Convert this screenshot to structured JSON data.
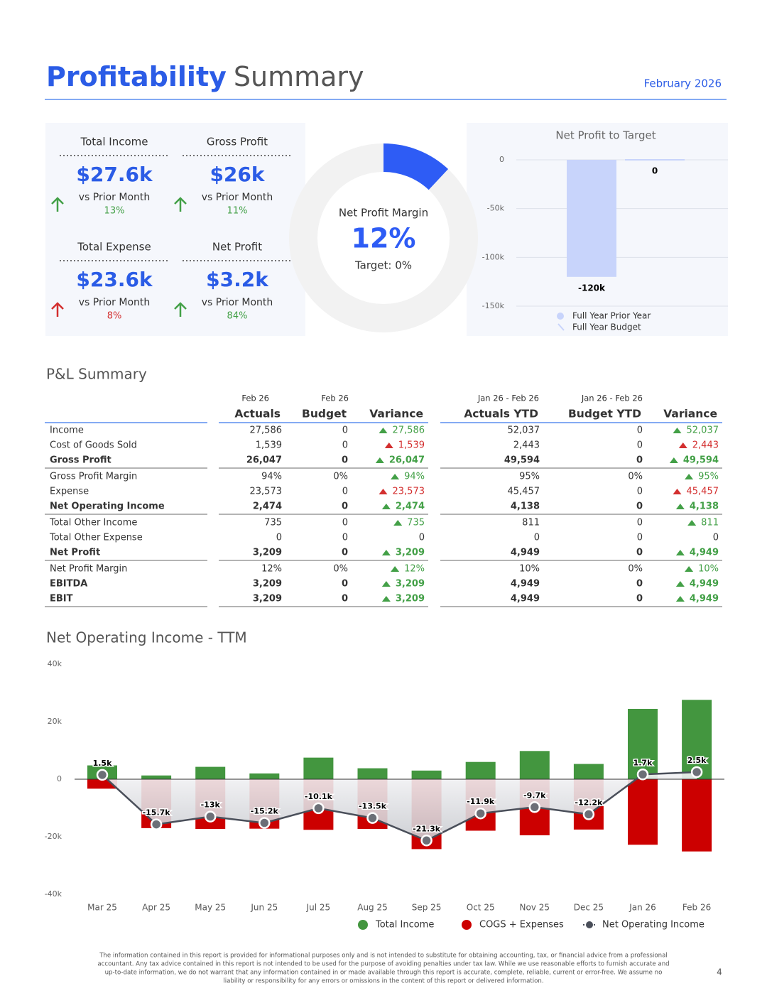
{
  "header": {
    "title_bold": "Profitability",
    "title_light": "Summary",
    "date": "February 2026"
  },
  "kpis": [
    {
      "label": "Total Income",
      "value": "$27.6k",
      "compare": "vs Prior Month",
      "change": "13%",
      "status": "good"
    },
    {
      "label": "Gross Profit",
      "value": "$26k",
      "compare": "vs Prior Month",
      "change": "11%",
      "status": "good"
    },
    {
      "label": "Total Expense",
      "value": "$23.6k",
      "compare": "vs Prior Month",
      "change": "8%",
      "status": "bad"
    },
    {
      "label": "Net Profit",
      "value": "$3.2k",
      "compare": "vs Prior Month",
      "change": "84%",
      "status": "good"
    }
  ],
  "chart_data": [
    {
      "type": "donut",
      "title": "Net Profit Margin",
      "value": 12,
      "value_label": "12%",
      "target": "Target: 0%",
      "color": "#2e5cf5"
    },
    {
      "type": "bar",
      "title": "Net Profit to Target",
      "categories": [
        null
      ],
      "ylim": [
        -150000,
        0
      ],
      "yticks": [
        0,
        {
          "value": -50000,
          "label": "-50k"
        },
        {
          "value": -100000,
          "label": "-100k"
        },
        {
          "value": -150000,
          "label": "-150k"
        }
      ],
      "grid": true,
      "series": [
        {
          "name": "Full Year Prior Year",
          "color": "#c8d4fb",
          "values": [
            -120000
          ],
          "value_labels": [
            "-120k"
          ]
        },
        {
          "name": "Full Year Budget",
          "color": "#c8d4fb",
          "values": [
            0
          ]
        }
      ]
    },
    {
      "type": "combo",
      "title": "Net Operating Income - TTM",
      "categories": [
        "Mar 25",
        "Apr 25",
        "May 25",
        "Jun 25",
        "Jul 25",
        "Aug 25",
        "Sep 25",
        "Oct 25",
        "Nov 25",
        "Dec 25",
        "Jan 26",
        "Feb 26"
      ],
      "ylim": [
        -40000,
        40000
      ],
      "yticks": [
        {
          "value": 40000,
          "label": "40k"
        },
        {
          "value": 20000,
          "label": "20k"
        },
        0,
        {
          "value": -20000,
          "label": "-20k"
        },
        {
          "value": -40000,
          "label": "-40k"
        }
      ],
      "series": [
        {
          "name": "Total Income",
          "type": "bar",
          "color": "#43963f",
          "values": [
            4800,
            1300,
            4300,
            2000,
            7500,
            3800,
            3000,
            6000,
            9800,
            5300,
            24451,
            27586
          ]
        },
        {
          "name": "COGS + Expenses",
          "type": "bar",
          "color": "#cc0000",
          "values": [
            -3300,
            -17000,
            -17300,
            -17200,
            -17600,
            -17300,
            -24300,
            -17900,
            -19500,
            -17500,
            -22788,
            -25112
          ]
        },
        {
          "name": "Net Operating Income",
          "type": "line",
          "color": "#4a4f5a",
          "values": [
            1500,
            -15700,
            -13000,
            -15200,
            -10100,
            -13500,
            -21300,
            -11900,
            -9700,
            -12200,
            1664,
            2474
          ],
          "value_labels": [
            "1.5k",
            "-15.7k",
            "-13k",
            "-15.2k",
            "-10.1k",
            "-13.5k",
            "-21.3k",
            "-11.9k",
            "-9.7k",
            "-12.2k",
            "1.7k",
            "2.5k"
          ]
        }
      ]
    }
  ],
  "table": {
    "title": "P&L Summary",
    "groups_header": [
      "Feb 26",
      "Feb 26",
      "Jan 26 - Feb 26",
      "Jan 26 - Feb 26"
    ],
    "columns": [
      "Actuals",
      "Budget",
      "Variance",
      "Actuals YTD",
      "Budget YTD",
      "Variance"
    ],
    "groups": [
      {
        "rows": [
          {
            "label": "Income",
            "cells": [
              "27,586",
              "0",
              "27,586",
              "52,037",
              "0",
              "52,037"
            ],
            "status": [
              "good",
              "good"
            ]
          },
          {
            "label": "Cost of Goods Sold",
            "cells": [
              "1,539",
              "0",
              "1,539",
              "2,443",
              "0",
              "2,443"
            ],
            "status": [
              "bad",
              "bad"
            ]
          },
          {
            "label": "Gross Profit",
            "bold": true,
            "cells": [
              "26,047",
              "0",
              "26,047",
              "49,594",
              "0",
              "49,594"
            ],
            "status": [
              "good",
              "good"
            ]
          }
        ]
      },
      {
        "rows": [
          {
            "label": "Gross Profit Margin",
            "cells": [
              "94%",
              "0%",
              "94%",
              "95%",
              "0%",
              "95%"
            ],
            "status": [
              "good",
              "good"
            ]
          },
          {
            "label": "Expense",
            "cells": [
              "23,573",
              "0",
              "23,573",
              "45,457",
              "0",
              "45,457"
            ],
            "status": [
              "bad",
              "bad"
            ]
          },
          {
            "label": "Net Operating Income",
            "bold": true,
            "cells": [
              "2,474",
              "0",
              "2,474",
              "4,138",
              "0",
              "4,138"
            ],
            "status": [
              "good",
              "good"
            ]
          }
        ]
      },
      {
        "rows": [
          {
            "label": "Total Other Income",
            "cells": [
              "735",
              "0",
              "735",
              "811",
              "0",
              "811"
            ],
            "status": [
              "good",
              "good"
            ]
          },
          {
            "label": "Total Other Expense",
            "cells": [
              "0",
              "0",
              "0",
              "0",
              "0",
              "0"
            ],
            "status": [
              null,
              null
            ]
          },
          {
            "label": "Net Profit",
            "bold": true,
            "cells": [
              "3,209",
              "0",
              "3,209",
              "4,949",
              "0",
              "4,949"
            ],
            "status": [
              "good",
              "good"
            ]
          }
        ]
      },
      {
        "rows": [
          {
            "label": "Net Profit Margin",
            "cells": [
              "12%",
              "0%",
              "12%",
              "10%",
              "0%",
              "10%"
            ],
            "status": [
              "good",
              "good"
            ]
          },
          {
            "label": "EBITDA",
            "bold": true,
            "cells": [
              "3,209",
              "0",
              "3,209",
              "4,949",
              "0",
              "4,949"
            ],
            "status": [
              "good",
              "good"
            ]
          },
          {
            "label": "EBIT",
            "bold": true,
            "cells": [
              "3,209",
              "0",
              "3,209",
              "4,949",
              "0",
              "4,949"
            ],
            "status": [
              "good",
              "good"
            ]
          }
        ]
      }
    ]
  },
  "footer": {
    "lines": [
      "The information contained in this report is provided for informational purposes only and is not intended to substitute for obtaining accounting, tax, or financial advice from a professional",
      "accountant. Any tax advice contained in this report is not intended to be used for the purpose of avoiding penalties under tax law. While we use reasonable efforts to furnish accurate and",
      "up-to-date information, we do not warrant that any information contained in or made available through this report is accurate, complete, reliable, current or error-free. We assume no",
      "liability or responsibility for any errors or omissions in the content of this report or delivered information."
    ],
    "page": "4"
  }
}
